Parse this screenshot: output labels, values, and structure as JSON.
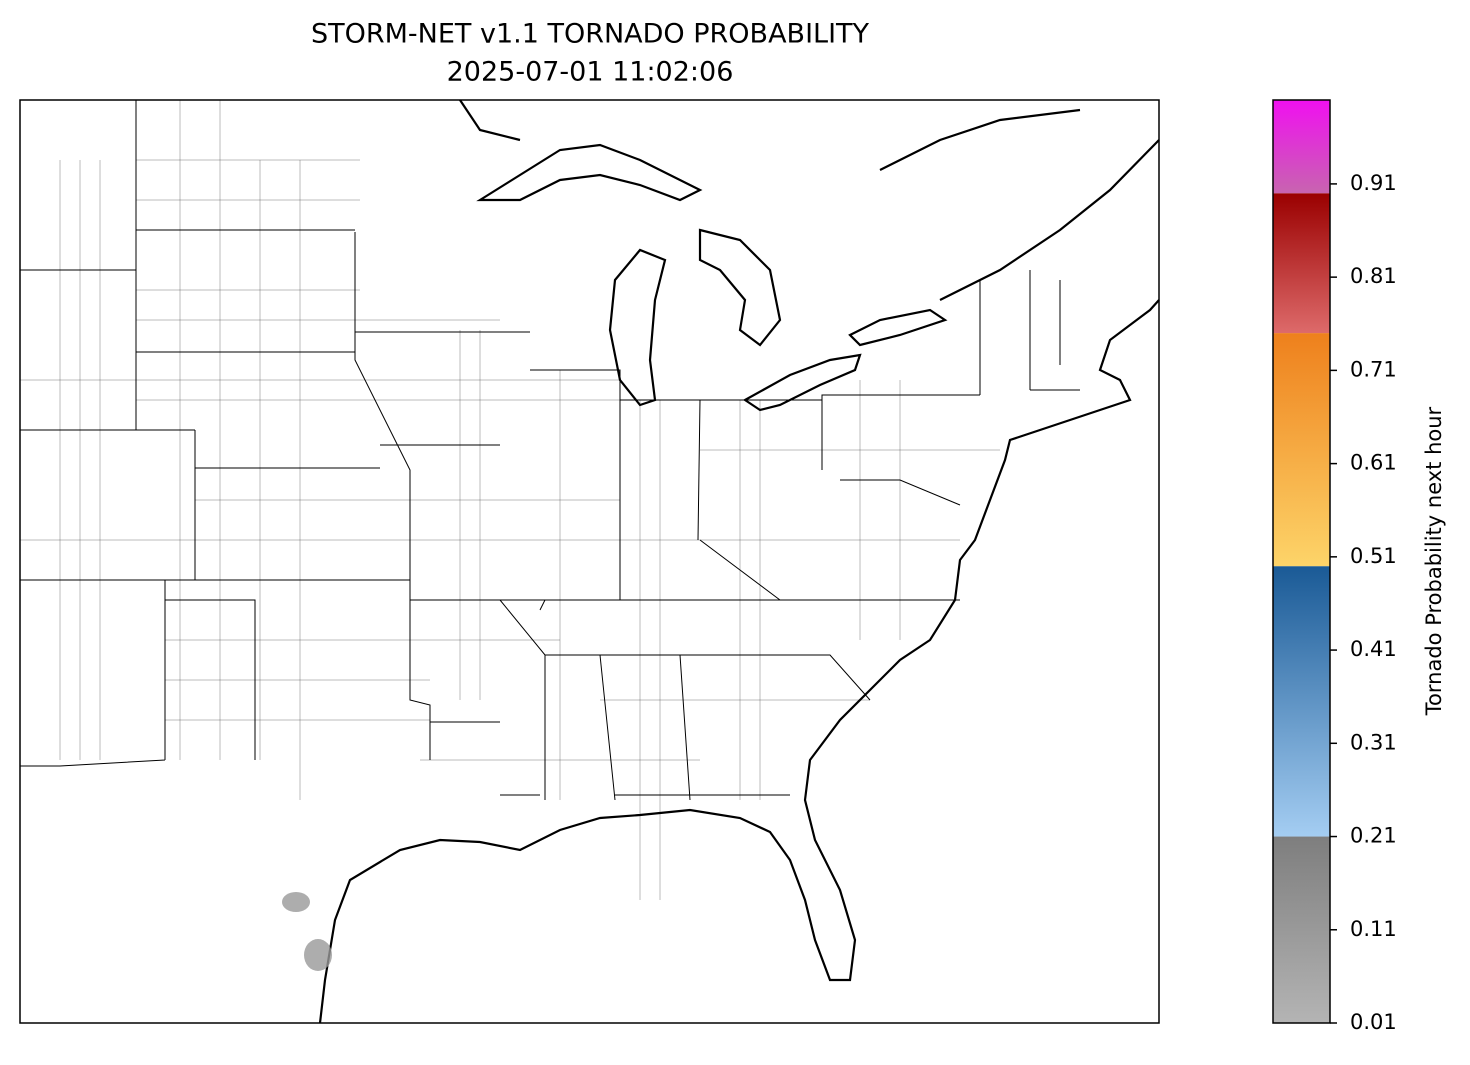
{
  "chart_data": {
    "type": "map",
    "title": "STORM-NET v1.1 TORNADO PROBABILITY",
    "subtitle": "2025-07-01 11:02:06",
    "cells": [
      {
        "value": 0.15,
        "color": "#999999"
      },
      {
        "value": 0.15,
        "color": "#999999"
      }
    ],
    "colorbar": {
      "label": "Tornado Probability next hour",
      "lim": [
        0.01,
        1.0
      ],
      "ticks": [
        0.01,
        0.11,
        0.21,
        0.31,
        0.41,
        0.51,
        0.61,
        0.71,
        0.81,
        0.91
      ],
      "segments": [
        {
          "from": 0.01,
          "to": 0.21,
          "colors": [
            "#b4b4b4",
            "#7e7e7e"
          ]
        },
        {
          "from": 0.21,
          "to": 0.5,
          "colors": [
            "#a4cdf2",
            "#1a5a96"
          ]
        },
        {
          "from": 0.5,
          "to": 0.75,
          "colors": [
            "#fdd469",
            "#ee801c"
          ]
        },
        {
          "from": 0.75,
          "to": 0.9,
          "colors": [
            "#dd6a6a",
            "#9a0000"
          ]
        },
        {
          "from": 0.9,
          "to": 1.0,
          "colors": [
            "#c864b0",
            "#f010f0"
          ]
        }
      ]
    }
  }
}
